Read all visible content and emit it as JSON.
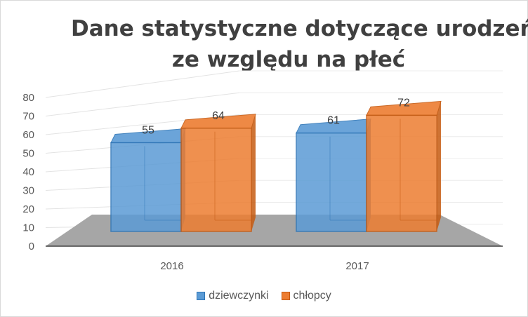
{
  "chart_data": {
    "type": "bar",
    "title_lines": [
      "Dane statystyczne dotyczące urodzeń",
      "ze względu na płeć"
    ],
    "categories": [
      "2016",
      "2017"
    ],
    "series": [
      {
        "name": "dziewczynki",
        "values": [
          55,
          61
        ],
        "color": "#5b9bd5"
      },
      {
        "name": "chłopcy",
        "values": [
          64,
          72
        ],
        "color": "#ed7d31"
      }
    ],
    "ylim": [
      0,
      80
    ],
    "yticks": [
      "0",
      "10",
      "20",
      "30",
      "40",
      "50",
      "60",
      "70",
      "80"
    ],
    "data_labels": [
      "55",
      "64",
      "61",
      "72"
    ],
    "grid": true,
    "legend_position": "bottom",
    "style": "3d-clustered-column"
  }
}
